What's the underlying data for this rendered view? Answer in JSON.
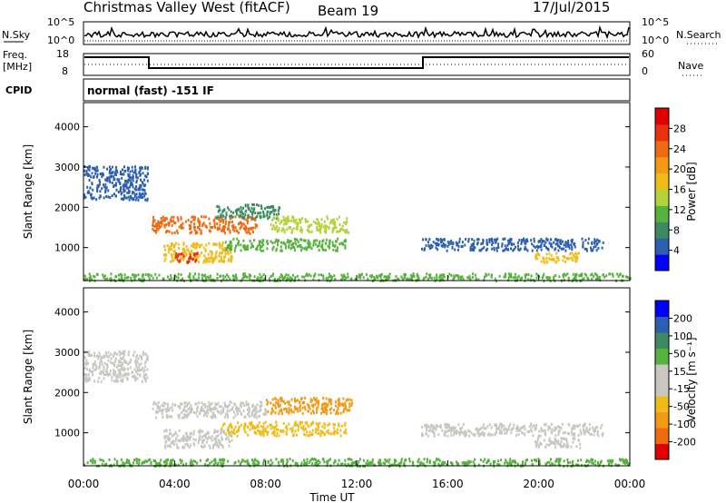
{
  "header": {
    "title": "Christmas Valley West (fitACF)",
    "beam": "Beam 19",
    "date": "17/Jul/2015"
  },
  "status_panels": {
    "nsky_label": "N.Sky",
    "nsearch_label": "N.Search",
    "freq_label_1": "Freq.",
    "freq_label_2": "[MHz]",
    "nave_label": "Nave",
    "cpid_label": "CPID",
    "cpid_value": "normal (fast) -151 IF",
    "nsky_ticks": [
      "10^5",
      "10^0"
    ],
    "nsearch_ticks": [
      "10^5",
      "10^0"
    ],
    "freq_ticks": [
      "18",
      "8"
    ],
    "nave_ticks": [
      "60",
      "0"
    ]
  },
  "colorbars": {
    "power": {
      "label": "Power [dB]",
      "ticks": [
        "28",
        "24",
        "20",
        "16",
        "12",
        "8",
        "4"
      ],
      "colors": [
        "#0000ff",
        "#2c5fb0",
        "#3d8a62",
        "#55b23c",
        "#b5d23a",
        "#f2bc18",
        "#f39a14",
        "#ef6a10",
        "#e8320e",
        "#e00000"
      ]
    },
    "velocity": {
      "label": "Velocity [m s⁻¹]",
      "ticks": [
        "200",
        "100",
        "50",
        "15",
        "-15",
        "-50",
        "-100",
        "-200"
      ],
      "colors": [
        "#e00000",
        "#ef6a10",
        "#f39a14",
        "#f2bc18",
        "#c8c8c0",
        "#c8c8c0",
        "#55b23c",
        "#3d8a62",
        "#2c5fb0",
        "#0000ff"
      ]
    }
  },
  "chart_data": [
    {
      "type": "heatmap",
      "panel": "power",
      "ylabel": "Slant Range [km]",
      "yticks": [
        "1000",
        "2000",
        "3000",
        "4000"
      ],
      "xticks": [
        "00:00",
        "04:00",
        "08:00",
        "12:00",
        "16:00",
        "20:00",
        "00:00"
      ],
      "ylim": [
        180,
        4600
      ],
      "xlim": [
        0,
        24
      ],
      "grid": false,
      "patches": [
        {
          "x0": 0.0,
          "x1": 2.8,
          "y0": 2200,
          "y1": 3050,
          "c": "#2c5fb0"
        },
        {
          "x0": 3.0,
          "x1": 7.6,
          "y0": 1380,
          "y1": 1800,
          "c": "#ef6a10"
        },
        {
          "x0": 5.8,
          "x1": 8.6,
          "y0": 1750,
          "y1": 2100,
          "c": "#3d8a62"
        },
        {
          "x0": 8.2,
          "x1": 11.6,
          "y0": 1400,
          "y1": 1800,
          "c": "#b5d23a"
        },
        {
          "x0": 3.5,
          "x1": 6.5,
          "y0": 650,
          "y1": 1150,
          "c": "#f2bc18"
        },
        {
          "x0": 4.0,
          "x1": 5.0,
          "y0": 640,
          "y1": 900,
          "c": "#e8320e"
        },
        {
          "x0": 6.2,
          "x1": 11.5,
          "y0": 950,
          "y1": 1250,
          "c": "#55b23c"
        },
        {
          "x0": 14.8,
          "x1": 22.8,
          "y0": 950,
          "y1": 1250,
          "c": "#2c5fb0"
        },
        {
          "x0": 19.8,
          "x1": 21.8,
          "y0": 650,
          "y1": 900,
          "c": "#f2bc18"
        },
        {
          "x0": 0.0,
          "x1": 24.0,
          "y0": 200,
          "y1": 380,
          "c": "#55b23c"
        }
      ]
    },
    {
      "type": "heatmap",
      "panel": "velocity",
      "ylabel": "Slant Range [km]",
      "yticks": [
        "1000",
        "2000",
        "3000",
        "4000"
      ],
      "xticks": [
        "00:00",
        "04:00",
        "08:00",
        "12:00",
        "16:00",
        "20:00",
        "00:00"
      ],
      "xlabel": "Time UT",
      "ylim": [
        180,
        4600
      ],
      "xlim": [
        0,
        24
      ],
      "grid": false,
      "patches": [
        {
          "x0": 0.0,
          "x1": 2.8,
          "y0": 2300,
          "y1": 3050,
          "c": "#c8c8c0"
        },
        {
          "x0": 3.0,
          "x1": 8.0,
          "y0": 1400,
          "y1": 1800,
          "c": "#c8c8c0"
        },
        {
          "x0": 8.0,
          "x1": 11.8,
          "y0": 1500,
          "y1": 1900,
          "c": "#f39a14"
        },
        {
          "x0": 6.0,
          "x1": 11.5,
          "y0": 950,
          "y1": 1300,
          "c": "#f2bc18"
        },
        {
          "x0": 3.5,
          "x1": 6.5,
          "y0": 650,
          "y1": 1100,
          "c": "#c8c8c0"
        },
        {
          "x0": 14.8,
          "x1": 22.8,
          "y0": 950,
          "y1": 1250,
          "c": "#c8c8c0"
        },
        {
          "x0": 19.8,
          "x1": 21.8,
          "y0": 650,
          "y1": 900,
          "c": "#c8c8c0"
        },
        {
          "x0": 0.0,
          "x1": 24.0,
          "y0": 200,
          "y1": 380,
          "c": "#55b23c"
        }
      ]
    }
  ]
}
